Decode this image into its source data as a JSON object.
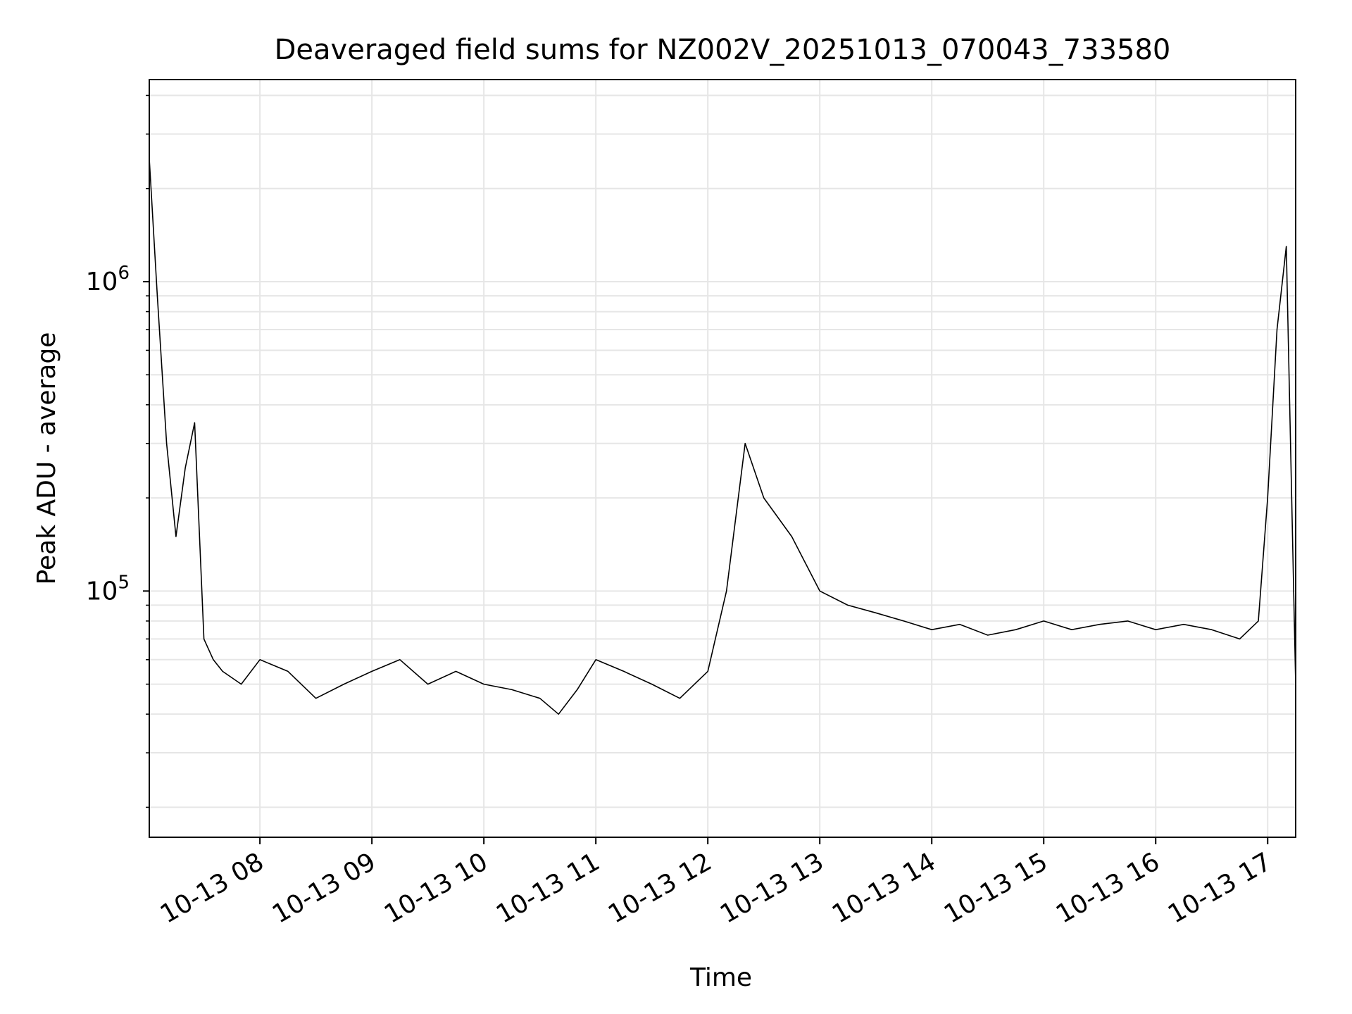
{
  "chart_data": {
    "type": "line",
    "title": "Deaveraged field sums for NZ002V_20251013_070043_733580",
    "xlabel": "Time",
    "ylabel": "Peak ADU - average",
    "yscale": "log",
    "ylim": [
      16000,
      4500000
    ],
    "xlim": [
      "2025-10-13 07:00:43",
      "2025-10-13 17:15:00"
    ],
    "grid": true,
    "legend": "none",
    "line_color": "#000000",
    "grid_color": "#e6e6e6",
    "x_ticks": [
      {
        "value": "2025-10-13 08:00",
        "label": "10-13 08"
      },
      {
        "value": "2025-10-13 09:00",
        "label": "10-13 09"
      },
      {
        "value": "2025-10-13 10:00",
        "label": "10-13 10"
      },
      {
        "value": "2025-10-13 11:00",
        "label": "10-13 11"
      },
      {
        "value": "2025-10-13 12:00",
        "label": "10-13 12"
      },
      {
        "value": "2025-10-13 13:00",
        "label": "10-13 13"
      },
      {
        "value": "2025-10-13 14:00",
        "label": "10-13 14"
      },
      {
        "value": "2025-10-13 15:00",
        "label": "10-13 15"
      },
      {
        "value": "2025-10-13 16:00",
        "label": "10-13 16"
      },
      {
        "value": "2025-10-13 17:00",
        "label": "10-13 17"
      }
    ],
    "y_ticks": [
      {
        "value": 100000,
        "base": "10",
        "exp": "5"
      },
      {
        "value": 1000000,
        "base": "10",
        "exp": "6"
      }
    ],
    "series": [
      {
        "x": [
          "2025-10-13 07:00:43",
          "2025-10-13 07:05",
          "2025-10-13 07:10",
          "2025-10-13 07:15",
          "2025-10-13 07:20",
          "2025-10-13 07:25",
          "2025-10-13 07:30",
          "2025-10-13 07:35",
          "2025-10-13 07:40",
          "2025-10-13 07:50",
          "2025-10-13 08:00",
          "2025-10-13 08:15",
          "2025-10-13 08:30",
          "2025-10-13 08:45",
          "2025-10-13 09:00",
          "2025-10-13 09:15",
          "2025-10-13 09:30",
          "2025-10-13 09:45",
          "2025-10-13 10:00",
          "2025-10-13 10:15",
          "2025-10-13 10:30",
          "2025-10-13 10:40",
          "2025-10-13 10:50",
          "2025-10-13 11:00",
          "2025-10-13 11:15",
          "2025-10-13 11:30",
          "2025-10-13 11:45",
          "2025-10-13 12:00",
          "2025-10-13 12:10",
          "2025-10-13 12:20",
          "2025-10-13 12:30",
          "2025-10-13 12:45",
          "2025-10-13 13:00",
          "2025-10-13 13:15",
          "2025-10-13 13:30",
          "2025-10-13 13:45",
          "2025-10-13 14:00",
          "2025-10-13 14:15",
          "2025-10-13 14:30",
          "2025-10-13 14:45",
          "2025-10-13 15:00",
          "2025-10-13 15:15",
          "2025-10-13 15:30",
          "2025-10-13 15:45",
          "2025-10-13 16:00",
          "2025-10-13 16:15",
          "2025-10-13 16:30",
          "2025-10-13 16:45",
          "2025-10-13 16:55",
          "2025-10-13 17:00",
          "2025-10-13 17:05",
          "2025-10-13 17:10",
          "2025-10-13 17:15"
        ],
        "y": [
          2500000,
          900000,
          300000,
          150000,
          250000,
          350000,
          70000,
          60000,
          55000,
          50000,
          60000,
          55000,
          45000,
          50000,
          55000,
          60000,
          50000,
          55000,
          50000,
          48000,
          45000,
          40000,
          48000,
          60000,
          55000,
          50000,
          45000,
          55000,
          100000,
          300000,
          200000,
          150000,
          100000,
          90000,
          85000,
          80000,
          75000,
          78000,
          72000,
          75000,
          80000,
          75000,
          78000,
          80000,
          75000,
          78000,
          75000,
          70000,
          80000,
          200000,
          700000,
          1300000,
          50000
        ]
      }
    ]
  }
}
